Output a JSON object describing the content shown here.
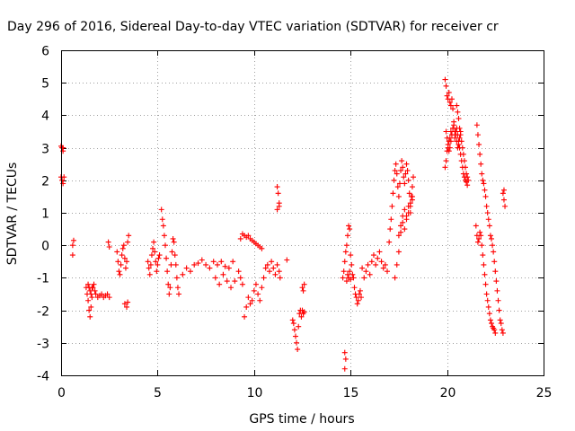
{
  "chart_data": {
    "type": "scatter",
    "title": "Day 296 of 2016, Sidereal Day-to-day VTEC variation (SDTVAR) for receiver cr",
    "xlabel": "GPS time / hours",
    "ylabel": "SDTVAR / TECUs",
    "xlim": [
      0,
      25
    ],
    "ylim": [
      -4,
      6
    ],
    "xticks": [
      "0",
      "5",
      "10",
      "15",
      "20",
      "25"
    ],
    "yticks": [
      "-4",
      "-3",
      "-2",
      "-1",
      "0",
      "1",
      "2",
      "3",
      "4",
      "5",
      "6"
    ],
    "grid": true,
    "marker": "plus",
    "color": "#ff0000",
    "series": [
      {
        "x": [
          0.0,
          0.05,
          0.1,
          0.15,
          0.0,
          0.05,
          0.1,
          0.1,
          0.6,
          0.65,
          0.6,
          1.3,
          1.35,
          1.4,
          1.45,
          1.5,
          1.55,
          1.6,
          1.65,
          1.7,
          1.75,
          1.4,
          1.45,
          1.5,
          1.55,
          1.6,
          1.8,
          1.9,
          2.0,
          2.1,
          2.2,
          2.3,
          2.4,
          2.5,
          2.45,
          2.5,
          2.9,
          2.95,
          3.0,
          3.05,
          3.1,
          3.15,
          3.2,
          3.25,
          3.3,
          3.35,
          3.4,
          3.45,
          3.5,
          3.3,
          3.4,
          3.45,
          4.5,
          4.55,
          4.6,
          4.65,
          4.7,
          4.75,
          4.8,
          4.85,
          4.9,
          4.95,
          5.0,
          5.05,
          5.1,
          5.2,
          5.25,
          5.3,
          5.35,
          5.4,
          5.45,
          5.5,
          5.55,
          5.6,
          5.65,
          5.7,
          5.75,
          5.8,
          5.85,
          5.9,
          5.95,
          6.0,
          6.05,
          6.1,
          6.3,
          6.5,
          6.7,
          6.9,
          7.1,
          7.3,
          7.5,
          7.7,
          7.9,
          8.1,
          8.3,
          8.5,
          8.7,
          8.9,
          8.0,
          8.2,
          8.4,
          8.6,
          8.8,
          9.0,
          9.2,
          9.3,
          9.4,
          9.3,
          9.4,
          9.5,
          9.6,
          9.7,
          9.8,
          9.9,
          10.0,
          10.1,
          10.2,
          10.3,
          10.4,
          9.5,
          9.6,
          9.7,
          9.8,
          9.9,
          10.0,
          10.1,
          10.2,
          10.3,
          10.4,
          10.5,
          10.6,
          10.7,
          10.8,
          10.9,
          11.0,
          11.1,
          11.2,
          11.3,
          11.35,
          11.2,
          11.25,
          11.3,
          11.2,
          11.3,
          11.7,
          12.0,
          12.05,
          12.1,
          12.15,
          12.2,
          12.25,
          12.3,
          12.35,
          12.4,
          12.45,
          12.5,
          12.55,
          12.6,
          12.5,
          12.55,
          12.6,
          14.7,
          14.75,
          14.7,
          14.6,
          14.65,
          14.7,
          14.75,
          14.8,
          14.85,
          14.9,
          14.95,
          15.0,
          15.05,
          15.1,
          15.15,
          14.8,
          14.85,
          14.9,
          14.95,
          15.0,
          15.2,
          15.25,
          15.3,
          15.35,
          15.4,
          15.45,
          15.5,
          15.55,
          15.6,
          15.7,
          15.8,
          15.9,
          16.0,
          16.1,
          16.2,
          16.3,
          16.4,
          16.5,
          16.6,
          16.7,
          16.8,
          16.9,
          17.0,
          17.05,
          17.1,
          17.15,
          17.2,
          17.25,
          17.3,
          17.35,
          17.4,
          17.45,
          17.5,
          17.55,
          17.6,
          17.65,
          17.7,
          17.75,
          17.8,
          17.85,
          17.9,
          17.95,
          18.0,
          18.05,
          18.1,
          18.15,
          18.2,
          18.25,
          17.5,
          17.6,
          17.7,
          17.8,
          17.9,
          18.0,
          18.1,
          18.2,
          17.3,
          17.4,
          17.5,
          17.6,
          17.7,
          17.8,
          17.9,
          18.0,
          18.1,
          18.2,
          19.9,
          19.95,
          20.0,
          20.05,
          20.1,
          20.15,
          20.2,
          20.25,
          20.3,
          19.9,
          19.95,
          20.0,
          20.05,
          20.1,
          20.15,
          20.2,
          20.25,
          20.3,
          20.35,
          20.4,
          20.45,
          20.5,
          20.55,
          20.6,
          20.65,
          20.7,
          20.75,
          20.8,
          20.85,
          20.9,
          20.95,
          21.0,
          21.05,
          19.95,
          20.0,
          20.05,
          20.1,
          20.15,
          20.2,
          20.25,
          20.3,
          20.35,
          20.4,
          20.45,
          20.5,
          20.55,
          20.6,
          20.65,
          20.7,
          20.5,
          20.55,
          20.6,
          20.65,
          20.7,
          20.75,
          20.8,
          20.85,
          20.9,
          20.95,
          21.0,
          21.05,
          21.1,
          21.55,
          21.6,
          21.65,
          21.7,
          21.75,
          21.8,
          21.85,
          21.9,
          21.95,
          22.0,
          22.05,
          22.1,
          22.15,
          22.2,
          22.25,
          22.3,
          22.35,
          22.4,
          22.45,
          22.5,
          22.55,
          22.6,
          22.65,
          22.7,
          22.75,
          22.8,
          22.85,
          22.9,
          21.5,
          21.55,
          21.6,
          21.65,
          21.7,
          21.75,
          21.8,
          21.85,
          21.9,
          21.95,
          22.0,
          22.05,
          22.1,
          22.15,
          22.2,
          22.25,
          22.3,
          22.35,
          22.4,
          22.45,
          22.5,
          22.9,
          22.95,
          23.0,
          22.95
        ],
        "y": [
          2.1,
          3.0,
          2.9,
          2.1,
          3.05,
          2.0,
          1.9,
          3.0,
          0.0,
          0.15,
          -0.3,
          -1.3,
          -1.5,
          -1.7,
          -2.0,
          -2.2,
          -1.9,
          -1.6,
          -1.3,
          -1.2,
          -1.4,
          -1.2,
          -1.3,
          -1.4,
          -1.5,
          -1.3,
          -1.5,
          -1.6,
          -1.55,
          -1.5,
          -1.6,
          -1.55,
          -1.5,
          -1.6,
          0.1,
          -0.05,
          -0.2,
          -0.5,
          -0.8,
          -0.9,
          -0.6,
          -0.3,
          -0.1,
          0.0,
          -0.4,
          -0.7,
          -0.5,
          0.1,
          0.3,
          -1.8,
          -1.9,
          -1.75,
          -0.5,
          -0.7,
          -0.9,
          -0.6,
          -0.3,
          -0.1,
          0.1,
          -0.2,
          -0.5,
          -0.8,
          -0.6,
          -0.4,
          -0.3,
          1.1,
          0.8,
          0.6,
          0.3,
          0.0,
          -0.4,
          -0.8,
          -1.2,
          -1.5,
          -1.3,
          -0.6,
          -0.2,
          0.2,
          0.1,
          -0.3,
          -0.6,
          -1.0,
          -1.3,
          -1.5,
          -0.9,
          -0.7,
          -0.8,
          -0.6,
          -0.55,
          -0.45,
          -0.6,
          -0.7,
          -0.5,
          -0.6,
          -0.5,
          -0.65,
          -0.7,
          -0.5,
          -1.0,
          -1.2,
          -0.9,
          -1.1,
          -1.3,
          -1.1,
          -0.8,
          -1.0,
          -1.2,
          0.2,
          0.35,
          0.3,
          0.25,
          0.3,
          0.2,
          0.15,
          0.1,
          0.05,
          0.0,
          -0.05,
          -0.1,
          -2.2,
          -1.9,
          -1.6,
          -1.8,
          -1.7,
          -1.4,
          -1.2,
          -1.5,
          -1.7,
          -1.3,
          -1.0,
          -0.7,
          -0.6,
          -0.8,
          -0.5,
          -0.7,
          -0.9,
          -0.6,
          -0.8,
          -1.0,
          1.8,
          1.6,
          1.3,
          1.1,
          1.2,
          -0.45,
          -2.3,
          -2.4,
          -2.6,
          -2.8,
          -3.0,
          -3.2,
          -2.5,
          -2.1,
          -2.0,
          -2.2,
          -1.3,
          -1.4,
          -1.2,
          -2.0,
          -2.1,
          -2.05,
          -3.3,
          -3.5,
          -3.8,
          -1.0,
          -0.8,
          -0.5,
          -0.2,
          0.0,
          0.3,
          0.6,
          0.5,
          -0.3,
          -0.6,
          -0.9,
          -1.0,
          -1.1,
          -0.9,
          -1.0,
          -0.8,
          -1.05,
          -1.3,
          -1.5,
          -1.6,
          -1.8,
          -1.7,
          -1.5,
          -1.4,
          -1.6,
          -0.7,
          -1.0,
          -0.8,
          -0.6,
          -0.9,
          -0.5,
          -0.3,
          -0.6,
          -0.4,
          -0.2,
          -0.5,
          -0.7,
          -0.6,
          -0.8,
          0.1,
          0.5,
          0.8,
          1.2,
          1.6,
          2.0,
          2.3,
          2.5,
          2.2,
          1.8,
          1.5,
          1.9,
          2.3,
          2.6,
          2.4,
          2.1,
          1.9,
          2.2,
          2.5,
          2.3,
          2.0,
          1.6,
          1.2,
          1.5,
          1.8,
          2.1,
          0.3,
          0.6,
          0.9,
          1.1,
          0.8,
          1.0,
          1.3,
          1.5,
          -1.0,
          -0.6,
          -0.2,
          0.4,
          0.7,
          0.5,
          0.9,
          1.2,
          1.0,
          1.4,
          5.1,
          4.9,
          4.6,
          4.5,
          4.7,
          4.4,
          4.3,
          4.5,
          4.2,
          2.4,
          2.6,
          2.9,
          3.0,
          3.2,
          3.3,
          3.5,
          3.4,
          3.6,
          3.7,
          3.3,
          3.5,
          3.6,
          3.4,
          3.2,
          3.0,
          2.8,
          2.6,
          2.4,
          2.2,
          2.1,
          2.0,
          1.95,
          1.85,
          3.5,
          3.3,
          3.1,
          2.9,
          3.0,
          3.2,
          3.4,
          3.6,
          3.8,
          3.5,
          3.4,
          3.2,
          3.0,
          3.1,
          3.3,
          3.5,
          4.3,
          4.1,
          3.9,
          3.6,
          3.4,
          3.2,
          3.0,
          2.8,
          2.6,
          2.4,
          2.2,
          2.1,
          2.0,
          3.7,
          3.4,
          3.1,
          2.8,
          2.5,
          2.2,
          2.0,
          1.9,
          1.7,
          1.5,
          1.2,
          1.0,
          0.8,
          0.6,
          0.3,
          0.2,
          0.0,
          -0.2,
          -0.5,
          -0.8,
          -1.1,
          -1.4,
          -1.7,
          -2.0,
          -2.3,
          -2.4,
          -2.6,
          -2.7,
          0.6,
          0.3,
          0.1,
          0.2,
          0.4,
          0.3,
          0.0,
          -0.3,
          -0.6,
          -0.9,
          -1.2,
          -1.5,
          -1.7,
          -1.9,
          -2.1,
          -2.3,
          -2.4,
          -2.5,
          -2.55,
          -2.6,
          -2.7,
          1.6,
          1.4,
          1.2,
          1.7
        ]
      }
    ]
  }
}
